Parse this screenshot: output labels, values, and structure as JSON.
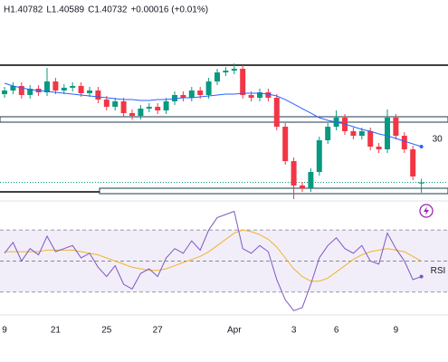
{
  "chart_data": [
    {
      "type": "candlestick",
      "legend_text": [
        "H1.40782",
        "L1.40589",
        "C1.40732",
        "+0.00016 (+0.01%)"
      ],
      "categories": [
        "9",
        null,
        null,
        null,
        null,
        null,
        "21",
        null,
        null,
        null,
        null,
        null,
        "25",
        null,
        null,
        null,
        null,
        null,
        "27",
        null,
        null,
        null,
        null,
        null,
        null,
        null,
        null,
        "Apr",
        null,
        null,
        null,
        null,
        null,
        null,
        "3",
        null,
        null,
        null,
        null,
        "6",
        null,
        null,
        null,
        null,
        null,
        null,
        "9",
        null,
        null,
        null
      ],
      "open": [
        1.4195,
        1.42,
        1.42063,
        1.41938,
        1.42025,
        1.41975,
        1.42125,
        1.42,
        1.42038,
        1.42063,
        1.41963,
        1.42,
        1.41875,
        1.41775,
        1.4185,
        1.41688,
        1.4165,
        1.4175,
        1.41775,
        1.41725,
        1.4185,
        1.41938,
        1.419,
        1.42,
        1.41938,
        1.42125,
        1.4225,
        1.42275,
        1.423,
        1.41938,
        1.419,
        1.41975,
        1.419,
        1.415,
        1.41025,
        1.40688,
        1.4065,
        1.40875,
        1.41313,
        1.415,
        1.41625,
        1.41438,
        1.41375,
        1.41438,
        1.41225,
        1.41188,
        1.41625,
        1.41375,
        1.41188,
        1.40716
      ],
      "high": [
        1.4205,
        1.42113,
        1.42113,
        1.42075,
        1.42075,
        1.42313,
        1.42175,
        1.42088,
        1.42113,
        1.42113,
        1.4205,
        1.4205,
        1.41925,
        1.419,
        1.419,
        1.41738,
        1.418,
        1.41825,
        1.41825,
        1.419,
        1.41988,
        1.41988,
        1.4205,
        1.4205,
        1.42175,
        1.423,
        1.42325,
        1.42375,
        1.4235,
        1.41988,
        1.42025,
        1.42025,
        1.4195,
        1.4155,
        1.41075,
        1.40738,
        1.40925,
        1.41363,
        1.4155,
        1.41725,
        1.41675,
        1.41488,
        1.41488,
        1.41488,
        1.41275,
        1.41738,
        1.41675,
        1.41425,
        1.41238,
        1.40782
      ],
      "low": [
        1.419,
        1.4195,
        1.41888,
        1.41888,
        1.41925,
        1.41925,
        1.4195,
        1.4195,
        1.41988,
        1.41913,
        1.41913,
        1.41825,
        1.41725,
        1.41725,
        1.41638,
        1.416,
        1.416,
        1.417,
        1.41675,
        1.41675,
        1.418,
        1.4185,
        1.4185,
        1.41888,
        1.41888,
        1.42075,
        1.422,
        1.42225,
        1.41888,
        1.4185,
        1.4185,
        1.4185,
        1.4145,
        1.40975,
        1.405,
        1.406,
        1.406,
        1.40825,
        1.41263,
        1.4145,
        1.41388,
        1.41325,
        1.41325,
        1.41175,
        1.41138,
        1.41138,
        1.41325,
        1.41138,
        1.40763,
        1.40589
      ],
      "close": [
        1.42,
        1.42063,
        1.41938,
        1.42025,
        1.41975,
        1.42125,
        1.42,
        1.42038,
        1.42063,
        1.41963,
        1.42,
        1.41875,
        1.41775,
        1.4185,
        1.41688,
        1.4165,
        1.4175,
        1.41775,
        1.41725,
        1.4185,
        1.41938,
        1.419,
        1.42,
        1.41938,
        1.42125,
        1.4225,
        1.42275,
        1.423,
        1.41938,
        1.419,
        1.41975,
        1.419,
        1.415,
        1.41025,
        1.40688,
        1.4065,
        1.40875,
        1.41313,
        1.415,
        1.41625,
        1.41438,
        1.41375,
        1.41438,
        1.41225,
        1.41188,
        1.41625,
        1.41375,
        1.41188,
        1.40813,
        1.40732
      ],
      "up_color": "#089981",
      "down_color": "#f23645",
      "series": [
        {
          "color": "#2962ff",
          "end_label": "30",
          "values": [
            1.421,
            1.42063,
            1.42038,
            1.42013,
            1.42,
            1.41988,
            1.41975,
            1.41963,
            1.4195,
            1.41938,
            1.41925,
            1.41913,
            1.419,
            1.41888,
            1.41875,
            1.41875,
            1.41863,
            1.41863,
            1.41875,
            1.41875,
            1.41888,
            1.419,
            1.419,
            1.41913,
            1.41925,
            1.41938,
            1.4195,
            1.4195,
            1.41963,
            1.41963,
            1.41963,
            1.4195,
            1.41925,
            1.41875,
            1.41813,
            1.4175,
            1.41688,
            1.41625,
            1.41588,
            1.41563,
            1.41538,
            1.415,
            1.41463,
            1.41438,
            1.414,
            1.41375,
            1.41338,
            1.413,
            1.41263,
            1.41225
          ]
        }
      ],
      "ylim": [
        1.40313,
        1.4325
      ]
    },
    {
      "type": "line",
      "series": [
        {
          "name": "RSI V",
          "color": "#7e57c2",
          "values": [
            55,
            62,
            50,
            58,
            54,
            66,
            56,
            58,
            60,
            52,
            55,
            46,
            40,
            47,
            35,
            32,
            42,
            45,
            40,
            52,
            58,
            55,
            63,
            57,
            70,
            78,
            80,
            82,
            58,
            55,
            60,
            56,
            38,
            25,
            18,
            20,
            35,
            52,
            60,
            65,
            58,
            55,
            60,
            50,
            48,
            68,
            58,
            50,
            38,
            40
          ]
        },
        {
          "color": "#f0b429",
          "values": [
            56,
            56,
            56,
            56,
            56,
            57,
            57,
            57,
            57,
            56,
            55,
            54,
            52,
            50,
            48,
            46,
            45,
            44,
            44,
            45,
            47,
            49,
            51,
            53,
            56,
            60,
            64,
            68,
            70,
            69,
            67,
            64,
            59,
            52,
            45,
            40,
            37,
            37,
            39,
            43,
            47,
            51,
            54,
            56,
            57,
            58,
            57,
            56,
            53,
            50
          ]
        }
      ],
      "levels": [
        70,
        50,
        30
      ],
      "ylim": [
        17,
        87
      ]
    }
  ]
}
